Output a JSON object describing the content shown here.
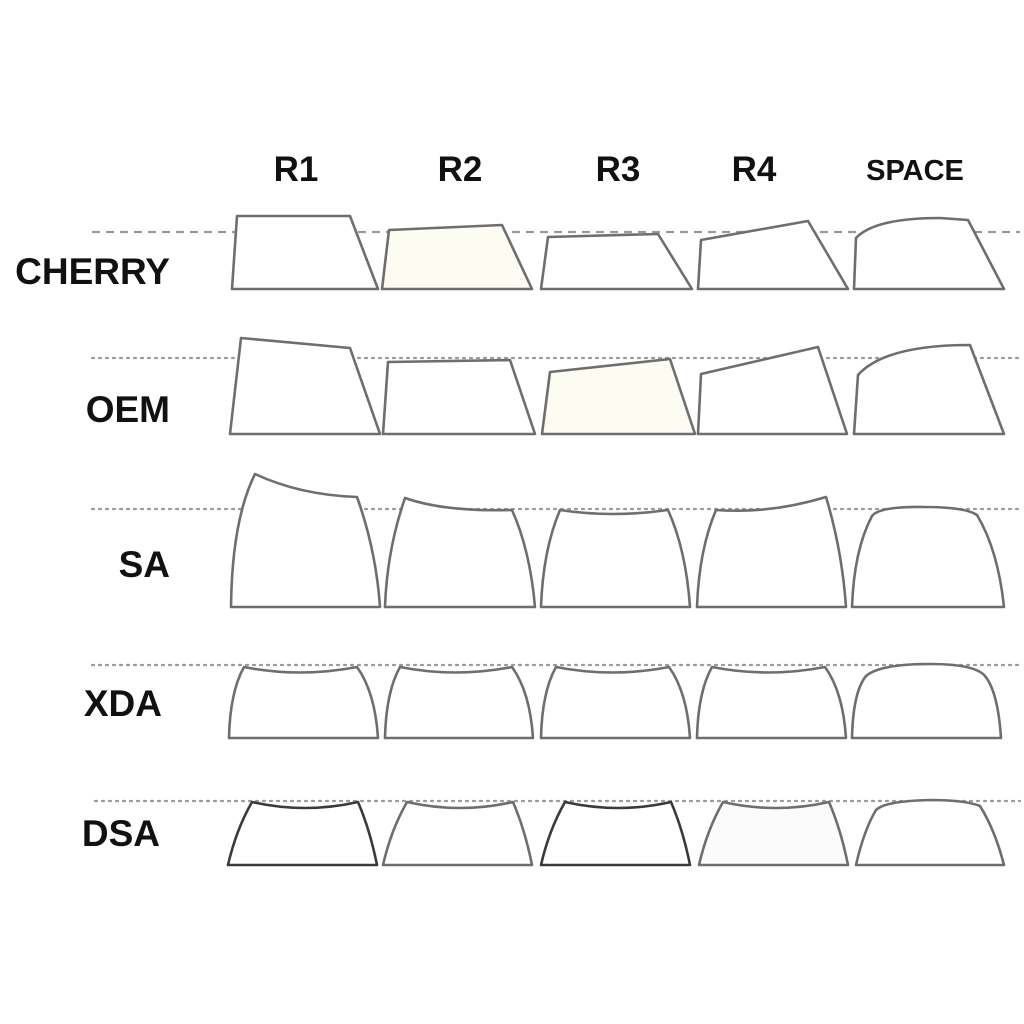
{
  "columns": [
    "R1",
    "R2",
    "R3",
    "R4",
    "SPACE"
  ],
  "profiles": [
    "CHERRY",
    "OEM",
    "SA",
    "XDA",
    "DSA"
  ],
  "colors": {
    "outline": "#6e6e6e",
    "guide_line": "#9a9a9a",
    "tinted_fill": "#fcfcf3",
    "text": "#111111"
  }
}
